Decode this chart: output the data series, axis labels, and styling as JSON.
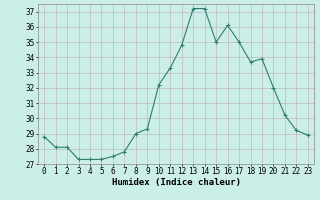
{
  "x": [
    0,
    1,
    2,
    3,
    4,
    5,
    6,
    7,
    8,
    9,
    10,
    11,
    12,
    13,
    14,
    15,
    16,
    17,
    18,
    19,
    20,
    21,
    22,
    23
  ],
  "y": [
    28.8,
    28.1,
    28.1,
    27.3,
    27.3,
    27.3,
    27.5,
    27.8,
    29.0,
    29.3,
    32.2,
    33.3,
    34.8,
    37.2,
    37.2,
    35.0,
    36.1,
    35.0,
    33.7,
    33.9,
    32.0,
    30.2,
    29.2,
    28.9
  ],
  "line_color": "#2e7d6e",
  "marker": "+",
  "marker_size": 3.5,
  "bg_color": "#cceee8",
  "grid_color": "#c0b8c0",
  "xlabel": "Humidex (Indice chaleur)",
  "ylim": [
    27,
    37.5
  ],
  "xlim": [
    -0.5,
    23.5
  ],
  "yticks": [
    27,
    28,
    29,
    30,
    31,
    32,
    33,
    34,
    35,
    36,
    37
  ],
  "xticks": [
    0,
    1,
    2,
    3,
    4,
    5,
    6,
    7,
    8,
    9,
    10,
    11,
    12,
    13,
    14,
    15,
    16,
    17,
    18,
    19,
    20,
    21,
    22,
    23
  ],
  "tick_fontsize": 5.5,
  "xlabel_fontsize": 6.5
}
